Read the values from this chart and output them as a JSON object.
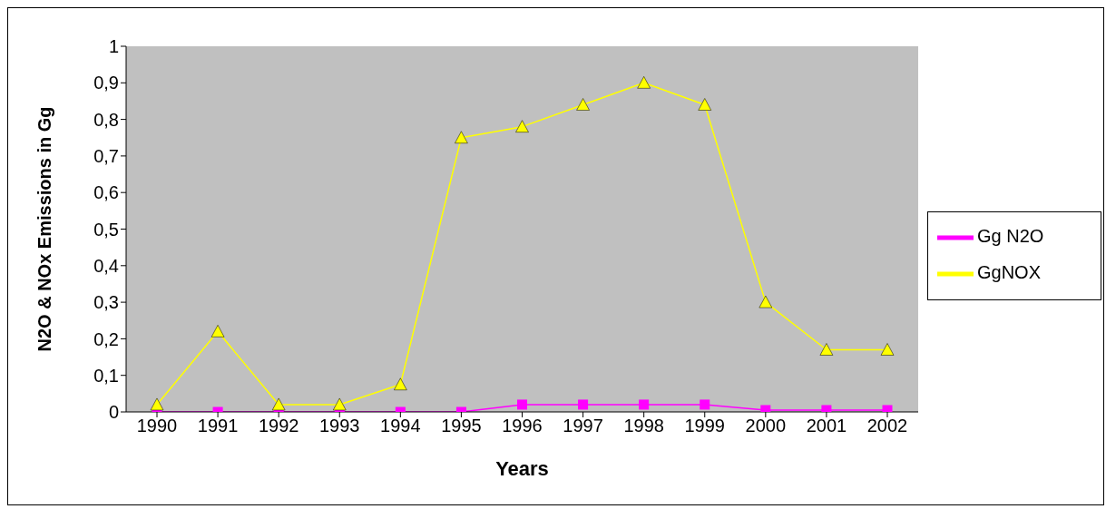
{
  "chart_data": {
    "type": "line",
    "xlabel": "Years",
    "ylabel": "N2O & NOx Emissions in Gg",
    "categories": [
      "1990",
      "1991",
      "1992",
      "1993",
      "1994",
      "1995",
      "1996",
      "1997",
      "1998",
      "1999",
      "2000",
      "2001",
      "2002"
    ],
    "series": [
      {
        "name": "Gg N2O",
        "color": "#ff00ff",
        "marker": "square",
        "values": [
          0,
          0,
          0,
          0,
          0,
          0,
          0.02,
          0.02,
          0.02,
          0.02,
          0.005,
          0.005,
          0.005
        ]
      },
      {
        "name": "GgNOX",
        "color": "#ffff00",
        "marker": "triangle",
        "values": [
          0.02,
          0.22,
          0.02,
          0.02,
          0.075,
          0.75,
          0.78,
          0.84,
          0.9,
          0.84,
          0.3,
          0.17,
          0.17
        ]
      }
    ],
    "ylim": [
      0,
      1
    ],
    "yticks": [
      0,
      {
        "value": 0.1,
        "label": "0,1"
      },
      {
        "value": 0.2,
        "label": "0,2"
      },
      {
        "value": 0.3,
        "label": "0,3"
      },
      {
        "value": 0.4,
        "label": "0,4"
      },
      {
        "value": 0.5,
        "label": "0,5"
      },
      {
        "value": 0.6,
        "label": "0,6"
      },
      {
        "value": 0.7,
        "label": "0,7"
      },
      {
        "value": 0.8,
        "label": "0,8"
      },
      {
        "value": 0.9,
        "label": "0,9"
      },
      1
    ],
    "grid": false,
    "legend": "right"
  }
}
